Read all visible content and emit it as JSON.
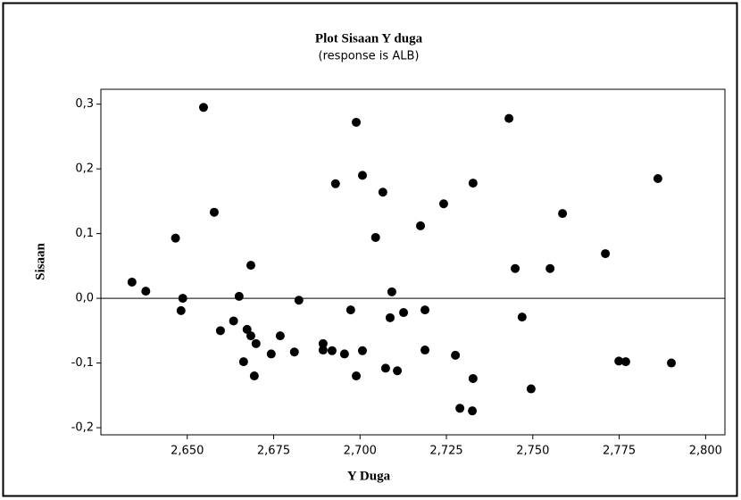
{
  "chart_data": {
    "type": "scatter",
    "title": "Plot Sisaan Y duga",
    "subtitle": "(response is ALB)",
    "x_label": "Y Duga",
    "y_label": "Sisaan",
    "color": "#000000",
    "reference_line": 0,
    "xlim": [
      2.625,
      2.8056
    ],
    "ylim": [
      -0.211,
      0.323
    ],
    "xticks": [
      {
        "value": 2.65,
        "label": "2,650"
      },
      {
        "value": 2.675,
        "label": "2,675"
      },
      {
        "value": 2.7,
        "label": "2,700"
      },
      {
        "value": 2.725,
        "label": "2,725"
      },
      {
        "value": 2.75,
        "label": "2,750"
      },
      {
        "value": 2.775,
        "label": "2,775"
      },
      {
        "value": 2.8,
        "label": "2,800"
      }
    ],
    "yticks": [
      {
        "value": -0.2,
        "label": "-0,2"
      },
      {
        "value": -0.1,
        "label": "-0,1"
      },
      {
        "value": 0,
        "label": "0,0"
      },
      {
        "value": 0.1,
        "label": "0,1"
      },
      {
        "value": 0.2,
        "label": "0,2"
      },
      {
        "value": 0.3,
        "label": "0,3"
      }
    ],
    "x": [
      2.634,
      2.638,
      2.6466,
      2.6482,
      2.6487,
      2.6547,
      2.6578,
      2.6596,
      2.6634,
      2.665,
      2.6663,
      2.6673,
      2.6684,
      2.6684,
      2.6699,
      2.6694,
      2.6743,
      2.6769,
      2.681,
      2.6823,
      2.6893,
      2.6893,
      2.6919,
      2.6929,
      2.6955,
      2.6973,
      2.6989,
      2.6989,
      2.7007,
      2.7007,
      2.7045,
      2.7066,
      2.7074,
      2.7087,
      2.7092,
      2.7108,
      2.7126,
      2.7175,
      2.7188,
      2.7188,
      2.7242,
      2.7276,
      2.7289,
      2.7325,
      2.7327,
      2.7327,
      2.7431,
      2.7449,
      2.7469,
      2.7495,
      2.755,
      2.7586,
      2.771,
      2.7749,
      2.7769,
      2.7862,
      2.7901
    ],
    "values": [
      0.025,
      0.011,
      0.093,
      -0.019,
      0.0,
      0.295,
      0.133,
      -0.05,
      -0.035,
      0.003,
      -0.098,
      -0.048,
      0.051,
      -0.058,
      -0.07,
      -0.12,
      -0.086,
      -0.058,
      -0.083,
      -0.003,
      -0.07,
      -0.08,
      -0.081,
      0.177,
      -0.086,
      -0.018,
      0.272,
      -0.12,
      0.19,
      -0.081,
      0.094,
      0.164,
      -0.108,
      -0.03,
      0.01,
      -0.112,
      -0.022,
      0.112,
      -0.018,
      -0.08,
      0.146,
      -0.088,
      -0.17,
      -0.174,
      0.178,
      -0.124,
      0.278,
      0.046,
      -0.029,
      -0.14,
      0.046,
      0.131,
      0.069,
      -0.097,
      -0.098,
      0.185,
      -0.1
    ]
  }
}
